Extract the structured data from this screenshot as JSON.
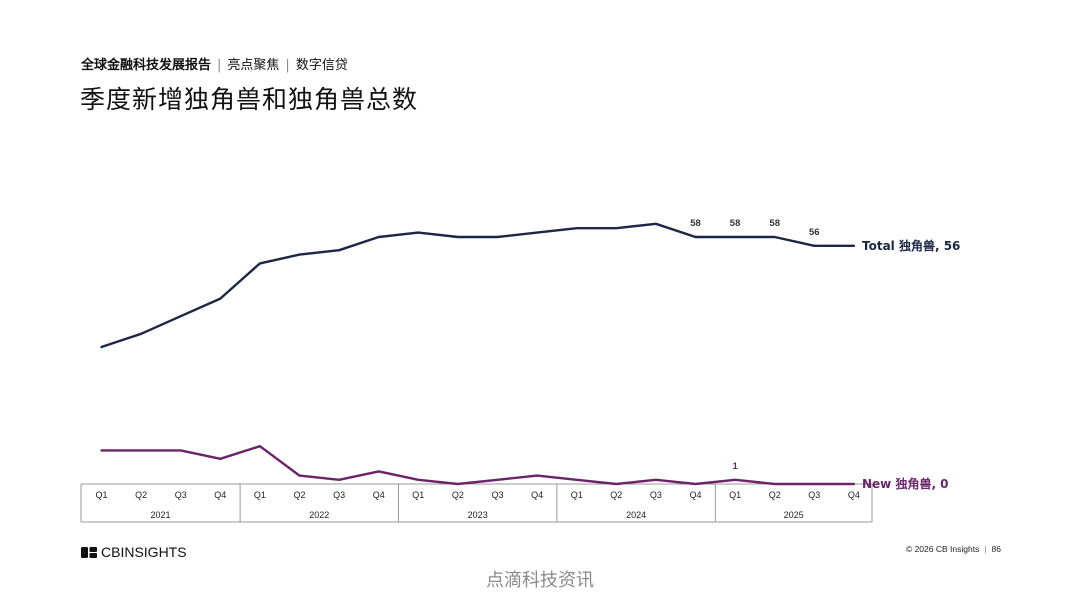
{
  "header": {
    "report": "全球金融科技发展报告",
    "section": "亮点聚焦",
    "topic": "数字信贷"
  },
  "title": "季度新增独角兽和独角兽总数",
  "chart_data": {
    "type": "line",
    "x": [
      "Q1",
      "Q2",
      "Q3",
      "Q4",
      "Q1",
      "Q2",
      "Q3",
      "Q4",
      "Q1",
      "Q2",
      "Q3",
      "Q4",
      "Q1",
      "Q2",
      "Q3",
      "Q4",
      "Q1",
      "Q2",
      "Q3",
      "Q4"
    ],
    "years": [
      {
        "label": "2021",
        "quarters": 4
      },
      {
        "label": "2022",
        "quarters": 4
      },
      {
        "label": "2023",
        "quarters": 4
      },
      {
        "label": "2024",
        "quarters": 4
      },
      {
        "label": "2025",
        "quarters": 4
      }
    ],
    "series": [
      {
        "name": "Total 独角兽",
        "end_label": "Total 独角兽, 56",
        "color": "#1b2744",
        "values": [
          33,
          36,
          40,
          44,
          52,
          54,
          55,
          58,
          59,
          58,
          58,
          59,
          60,
          60,
          61,
          58,
          58,
          58,
          56,
          56
        ],
        "point_labels": [
          {
            "index": 15,
            "text": "58"
          },
          {
            "index": 16,
            "text": "58"
          },
          {
            "index": 17,
            "text": "58"
          },
          {
            "index": 18,
            "text": "56"
          }
        ]
      },
      {
        "name": "New 独角兽",
        "end_label": "New 独角兽, 0",
        "color": "#6b2369",
        "values": [
          8,
          8,
          8,
          6,
          9,
          2,
          1,
          3,
          1,
          0,
          1,
          2,
          1,
          0,
          1,
          0,
          1,
          0,
          0,
          0
        ],
        "point_labels": [
          {
            "index": 16,
            "text": "1"
          }
        ]
      }
    ]
  },
  "footer": {
    "logo_text": "CBINSIGHTS",
    "copyright": "© 2026 CB Insights",
    "page": "86"
  },
  "watermark": "点滴科技资讯"
}
